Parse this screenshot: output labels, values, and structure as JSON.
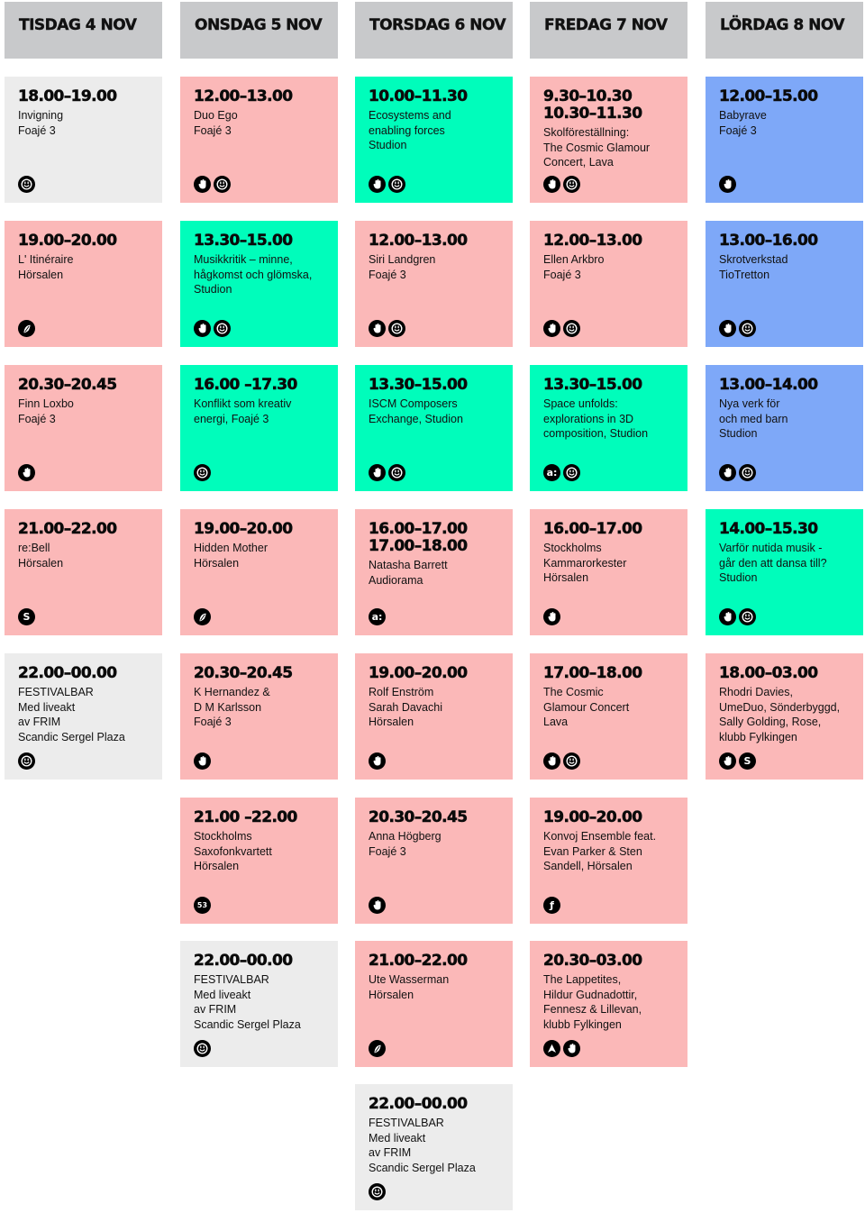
{
  "days": [
    {
      "header": "TISDAG 4 NOV",
      "events": [
        {
          "times": [
            "18.00–19.00"
          ],
          "lines": [
            "Invigning",
            "Foajé 3"
          ],
          "color": "grey",
          "icons": [
            "smiley"
          ]
        },
        {
          "times": [
            "19.00–20.00"
          ],
          "lines": [
            "L' Itinéraire",
            "Hörsalen"
          ],
          "color": "pink",
          "icons": [
            "fleur"
          ]
        },
        {
          "times": [
            "20.30–20.45"
          ],
          "lines": [
            "Finn Loxbo",
            "Foajé 3"
          ],
          "color": "pink",
          "icons": [
            "hand"
          ]
        },
        {
          "times": [
            "21.00–22.00"
          ],
          "lines": [
            "re:Bell",
            "Hörsalen"
          ],
          "color": "pink",
          "icons": [
            "s"
          ]
        },
        {
          "times": [
            "22.00–00.00"
          ],
          "lines": [
            "FESTIVALBAR",
            "Med liveakt",
            "av FRIM",
            "Scandic Sergel Plaza"
          ],
          "color": "grey",
          "icons": [
            "smiley"
          ]
        }
      ]
    },
    {
      "header": "ONSDAG 5 NOV",
      "events": [
        {
          "times": [
            "12.00–13.00"
          ],
          "lines": [
            "Duo Ego",
            "Foajé 3"
          ],
          "color": "pink",
          "icons": [
            "hand",
            "smiley"
          ]
        },
        {
          "times": [
            "13.30–15.00"
          ],
          "lines": [
            "Musikkritik – minne,",
            "hågkomst och glömska,",
            "Studion"
          ],
          "color": "green",
          "icons": [
            "hand",
            "smiley"
          ]
        },
        {
          "times": [
            "16.00 –17.30"
          ],
          "lines": [
            "Konflikt som kreativ",
            "energi, Foajé 3"
          ],
          "color": "green",
          "icons": [
            "smiley"
          ]
        },
        {
          "times": [
            "19.00–20.00"
          ],
          "lines": [
            "Hidden Mother",
            "Hörsalen"
          ],
          "color": "pink",
          "icons": [
            "fleur"
          ]
        },
        {
          "times": [
            "20.30–20.45"
          ],
          "lines": [
            "K Hernandez &",
            "D M Karlsson",
            "Foajé 3"
          ],
          "color": "pink",
          "icons": [
            "hand"
          ]
        },
        {
          "times": [
            "21.00 –22.00"
          ],
          "lines": [
            "Stockholms",
            "Saxofonkvartett",
            "Hörsalen"
          ],
          "color": "pink",
          "icons": [
            "53"
          ]
        },
        {
          "times": [
            "22.00–00.00"
          ],
          "lines": [
            "FESTIVALBAR",
            "Med liveakt",
            "av FRIM",
            "Scandic Sergel Plaza"
          ],
          "color": "grey",
          "icons": [
            "smiley"
          ]
        }
      ]
    },
    {
      "header": "TORSDAG 6 NOV",
      "events": [
        {
          "times": [
            "10.00–11.30"
          ],
          "lines": [
            "Ecosystems and",
            "enabling forces",
            "Studion"
          ],
          "color": "green",
          "icons": [
            "hand",
            "smiley"
          ]
        },
        {
          "times": [
            "12.00–13.00"
          ],
          "lines": [
            "Siri Landgren",
            "Foajé 3"
          ],
          "color": "pink",
          "icons": [
            "hand",
            "smiley"
          ]
        },
        {
          "times": [
            "13.30–15.00"
          ],
          "lines": [
            "ISCM Composers",
            "Exchange, Studion"
          ],
          "color": "green",
          "icons": [
            "hand",
            "smiley"
          ]
        },
        {
          "times": [
            "16.00–17.00",
            "17.00–18.00"
          ],
          "lines": [
            "Natasha Barrett",
            "Audiorama"
          ],
          "color": "pink",
          "icons": [
            "a"
          ]
        },
        {
          "times": [
            "19.00–20.00"
          ],
          "lines": [
            "Rolf Enström",
            "Sarah Davachi",
            "Hörsalen"
          ],
          "color": "pink",
          "icons": [
            "hand"
          ]
        },
        {
          "times": [
            "20.30–20.45"
          ],
          "lines": [
            "Anna Högberg",
            "Foajé 3"
          ],
          "color": "pink",
          "icons": [
            "hand"
          ]
        },
        {
          "times": [
            "21.00–22.00"
          ],
          "lines": [
            "Ute Wasserman",
            "Hörsalen"
          ],
          "color": "pink",
          "icons": [
            "fleur"
          ]
        },
        {
          "times": [
            "22.00–00.00"
          ],
          "lines": [
            "FESTIVALBAR",
            "Med liveakt",
            "av FRIM",
            "Scandic Sergel Plaza"
          ],
          "color": "grey",
          "icons": [
            "smiley"
          ]
        }
      ]
    },
    {
      "header": "FREDAG 7 NOV",
      "events": [
        {
          "times": [
            "9.30–10.30",
            "10.30–11.30"
          ],
          "lines": [
            "Skolföreställning:",
            "The Cosmic Glamour",
            "Concert, Lava"
          ],
          "color": "pink",
          "icons": [
            "hand",
            "smiley"
          ]
        },
        {
          "times": [
            "12.00–13.00"
          ],
          "lines": [
            "Ellen Arkbro",
            "Foajé 3"
          ],
          "color": "pink",
          "icons": [
            "hand",
            "smiley"
          ]
        },
        {
          "times": [
            "13.30–15.00"
          ],
          "lines": [
            "Space unfolds:",
            "explorations in 3D",
            "composition, Studion"
          ],
          "color": "green",
          "icons": [
            "a",
            "smiley"
          ]
        },
        {
          "times": [
            "16.00–17.00"
          ],
          "lines": [
            "Stockholms",
            "Kammarorkester",
            "Hörsalen"
          ],
          "color": "pink",
          "icons": [
            "hand"
          ]
        },
        {
          "times": [
            "17.00–18.00"
          ],
          "lines": [
            "The Cosmic",
            "Glamour Concert",
            "Lava"
          ],
          "color": "pink",
          "icons": [
            "hand",
            "smiley"
          ]
        },
        {
          "times": [
            "19.00–20.00"
          ],
          "lines": [
            "Konvoj Ensemble feat.",
            "Evan Parker & Sten",
            "Sandell, Hörsalen"
          ],
          "color": "pink",
          "icons": [
            "f"
          ]
        },
        {
          "times": [
            "20.30–03.00"
          ],
          "lines": [
            "The Lappetites,",
            "Hildur Gudnadottir,",
            "Fennesz & Lillevan,",
            "klubb Fylkingen"
          ],
          "color": "pink",
          "icons": [
            "arrow",
            "hand"
          ]
        }
      ]
    },
    {
      "header": "LÖRDAG 8 NOV",
      "events": [
        {
          "times": [
            "12.00–15.00"
          ],
          "lines": [
            "Babyrave",
            "Foajé 3"
          ],
          "color": "blue",
          "icons": [
            "hand"
          ]
        },
        {
          "times": [
            "13.00–16.00"
          ],
          "lines": [
            "Skrotverkstad",
            "TioTretton"
          ],
          "color": "blue",
          "icons": [
            "hand",
            "smiley"
          ]
        },
        {
          "times": [
            "13.00–14.00"
          ],
          "lines": [
            "Nya verk för",
            "och med barn",
            "Studion"
          ],
          "color": "blue",
          "icons": [
            "hand",
            "smiley"
          ]
        },
        {
          "times": [
            "14.00–15.30"
          ],
          "lines": [
            "Varför nutida musik -",
            "går den att dansa till?",
            "Studion"
          ],
          "color": "green",
          "icons": [
            "hand",
            "smiley"
          ]
        },
        {
          "times": [
            "18.00–03.00"
          ],
          "lines": [
            "Rhodri Davies,",
            "UmeDuo, Sönderbyggd,",
            "Sally Golding, Rose,",
            "klubb Fylkingen"
          ],
          "color": "pink",
          "icons": [
            "hand",
            "s"
          ]
        }
      ]
    }
  ]
}
